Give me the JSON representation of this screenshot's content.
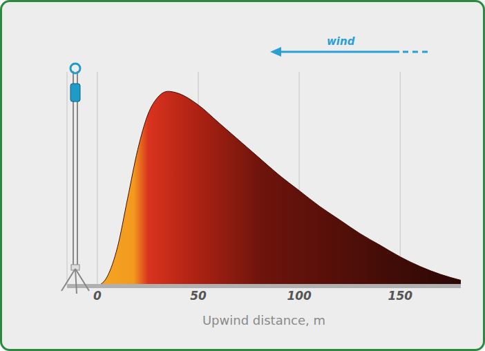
{
  "chart_data": {
    "type": "area",
    "annotation": "wind",
    "x_label": "Upwind distance, m",
    "x": [
      0,
      5,
      10,
      15,
      20,
      25,
      30,
      35,
      40,
      50,
      60,
      70,
      80,
      90,
      100,
      110,
      120,
      130,
      140,
      150,
      160,
      170,
      180
    ],
    "values": [
      0,
      0.05,
      0.2,
      0.45,
      0.7,
      0.88,
      0.97,
      1.0,
      0.99,
      0.93,
      0.84,
      0.75,
      0.66,
      0.57,
      0.49,
      0.41,
      0.34,
      0.27,
      0.21,
      0.15,
      0.1,
      0.06,
      0.03
    ],
    "color": "#d9341f",
    "xlim": [
      -15,
      180
    ],
    "xticks": [
      0,
      50,
      100,
      150
    ],
    "ylim": [
      0,
      1.1
    ],
    "yticks": [],
    "grid": true,
    "tick_labels": "x"
  }
}
